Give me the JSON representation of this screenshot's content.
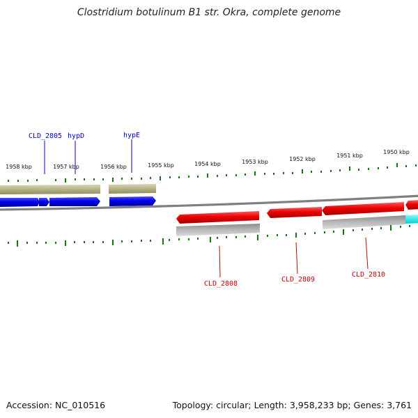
{
  "title": "Clostridium botulinum B1 str. Okra, complete genome",
  "footer": {
    "accession": "Accession: NC_010516",
    "topology": "Topology: circular; Length: 3,958,233 bp; Genes: 3,761"
  },
  "colors": {
    "forward_cds": "#0000ee",
    "forward_gene": "#b4b285",
    "reverse_cds": "#ee0000",
    "reverse_gene": "#a6a6a6",
    "highlight_gene": "#00eeee",
    "tick": "#0e7a0e",
    "backbone": "#808080",
    "forward_label": "#0000cc",
    "reverse_label": "#cc0000"
  },
  "ruler": {
    "ticks": [
      "1958 kbp",
      "1957 kbp",
      "1956 kbp",
      "1955 kbp",
      "1954 kbp",
      "1953 kbp",
      "1952 kbp",
      "1951 kbp",
      "1950 kbp"
    ]
  },
  "gene_labels": {
    "forward": [
      "CLD_2805",
      "hypD",
      "hypE"
    ],
    "reverse": [
      "CLD_2808",
      "CLD_2809",
      "CLD_2810"
    ]
  }
}
